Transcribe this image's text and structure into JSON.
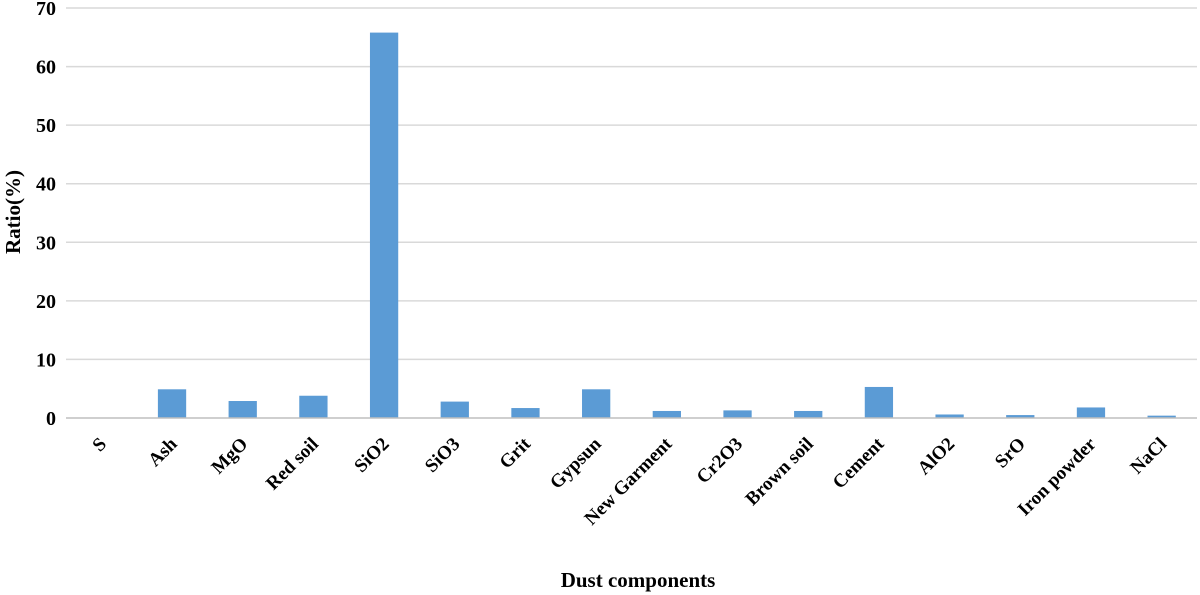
{
  "chart_data": {
    "type": "bar",
    "xlabel": "Dust components",
    "ylabel": "Ratio(%)",
    "ylim": [
      0,
      70
    ],
    "yticks": [
      0,
      10,
      20,
      30,
      40,
      50,
      60,
      70
    ],
    "grid": true,
    "bar_color": "#5b9bd5",
    "categories": [
      "S",
      "Ash",
      "MgO",
      "Red soil",
      "SiO2",
      "SiO3",
      "Grit",
      "Gypsun",
      "New Garment",
      "Cr2O3",
      "Brown soil",
      "Cement",
      "AlO2",
      "SrO",
      "Iron powder",
      "NaCl"
    ],
    "values": [
      0,
      4.9,
      2.9,
      3.8,
      65.8,
      2.8,
      1.7,
      4.9,
      1.2,
      1.3,
      1.2,
      5.3,
      0.6,
      0.5,
      1.8,
      0.4
    ]
  }
}
